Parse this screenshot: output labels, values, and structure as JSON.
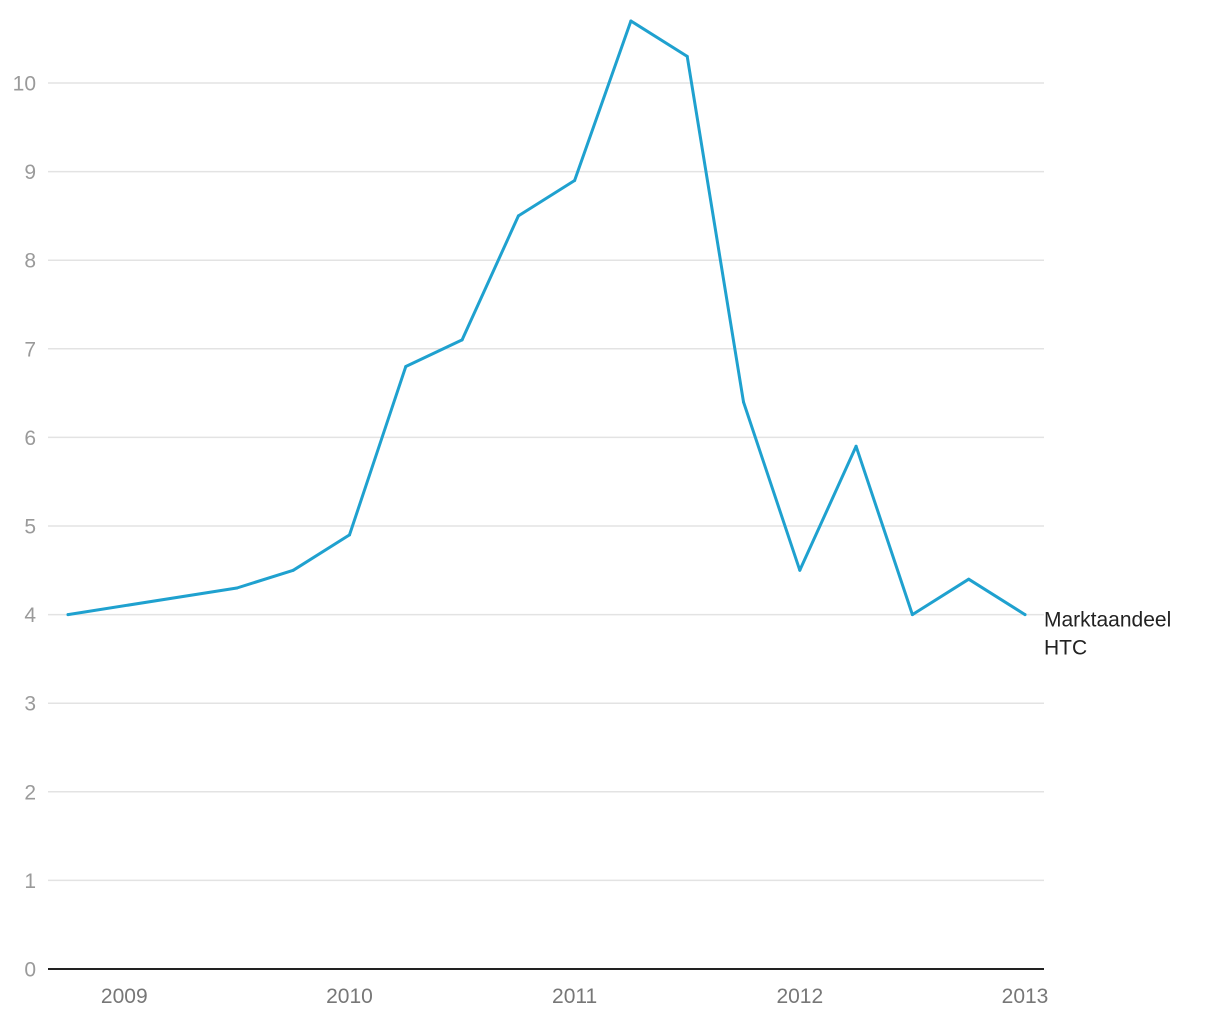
{
  "chart_data": {
    "type": "line",
    "title": "",
    "xlabel": "",
    "ylabel": "",
    "ylim": [
      0,
      10.8
    ],
    "yticks": [
      0,
      1,
      2,
      3,
      4,
      5,
      6,
      7,
      8,
      9,
      10
    ],
    "xlim": [
      2008.75,
      2013
    ],
    "xticks": [
      {
        "value": 2009,
        "label": "2009"
      },
      {
        "value": 2010,
        "label": "2010"
      },
      {
        "value": 2011,
        "label": "2011"
      },
      {
        "value": 2012,
        "label": "2012"
      },
      {
        "value": 2013,
        "label": "2013"
      }
    ],
    "grid": true,
    "series": [
      {
        "name": "Marktaandeel HTC",
        "label_lines": [
          "Marktaandeel",
          "HTC"
        ],
        "color": "#1fa1cf",
        "x": [
          2008.75,
          2009.5,
          2009.75,
          2010,
          2010.25,
          2010.5,
          2010.75,
          2011,
          2011.25,
          2011.5,
          2011.75,
          2012,
          2012.25,
          2012.5,
          2012.75,
          2013
        ],
        "values": [
          4.0,
          4.3,
          4.5,
          4.9,
          6.8,
          7.1,
          8.5,
          8.9,
          10.7,
          10.3,
          6.4,
          4.5,
          5.9,
          4.0,
          4.4,
          4.0
        ]
      }
    ]
  }
}
